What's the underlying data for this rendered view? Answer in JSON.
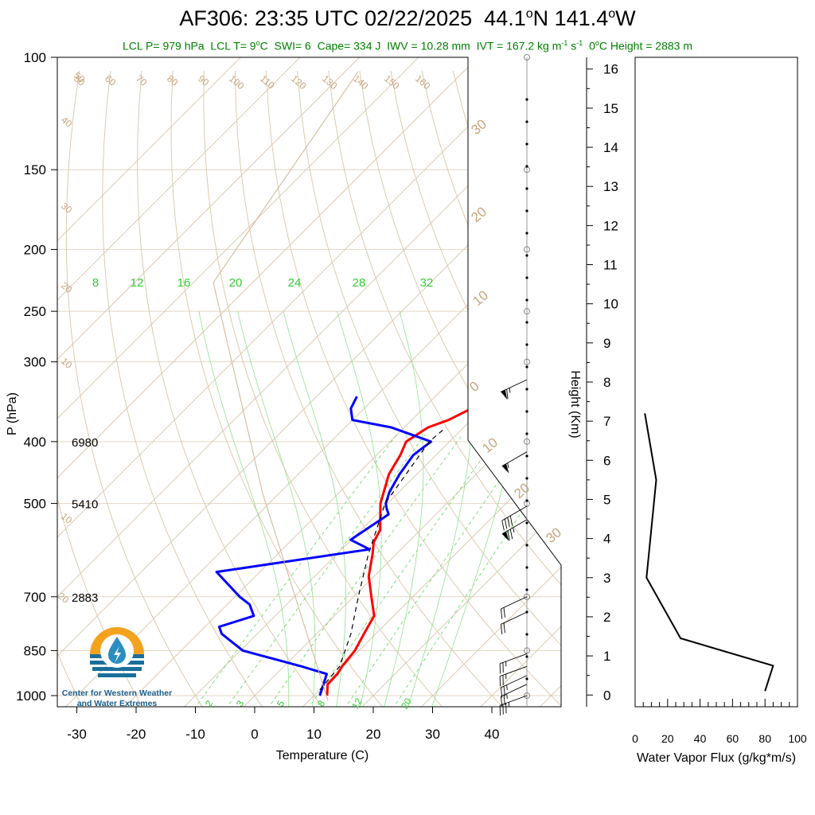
{
  "title": {
    "station": "AF306:",
    "time": "23:35 UTC 02/22/2025",
    "lat": "44.1",
    "lat_dir": "N",
    "lon": "141.4",
    "lon_dir": "W",
    "deg": "o"
  },
  "subtitle": {
    "lcl_p": "LCL P= 979 hPa",
    "lcl_t_pre": "LCL T= 9",
    "lcl_t_post": "C",
    "swi": "SWI= 6",
    "cape": "Cape= 334 J",
    "iwv": "IWV = 10.28 mm",
    "ivt_pre": "IVT = 167.2 kg m",
    "ivt_exp1": "-1",
    "ivt_mid": " s",
    "ivt_exp2": "-1",
    "zero_pre": "0",
    "zero_post": "C Height = 2883 m",
    "deg": "o"
  },
  "logo": {
    "line1": "Center for Western Weather",
    "line2": "and Water Extremes"
  },
  "chart_data": [
    {
      "type": "line",
      "subtype": "skew-T log-P sounding",
      "xlabel": "Temperature (C)",
      "ylabel": "P (hPa)",
      "xlim": [
        -33,
        52
      ],
      "ylim": [
        1000,
        100
      ],
      "y_scale": "log",
      "x_ticks": [
        -30,
        -20,
        -10,
        0,
        10,
        20,
        30,
        40
      ],
      "y_ticks": [
        100,
        150,
        200,
        250,
        300,
        400,
        500,
        700,
        850,
        1000
      ],
      "height_labels": [
        {
          "p": 400,
          "label": "6980"
        },
        {
          "p": 500,
          "label": "5410"
        },
        {
          "p": 700,
          "label": "2883"
        }
      ],
      "series": [
        {
          "role": "temperature",
          "color": "#ff0000",
          "p": [
            1000,
            960,
            925,
            900,
            850,
            800,
            750,
            700,
            650,
            600,
            575,
            550,
            500,
            450,
            420,
            400,
            380,
            370,
            350
          ],
          "t": [
            12.2,
            10.4,
            10.3,
            9.8,
            9.3,
            8.0,
            6.7,
            3.0,
            -0.9,
            -4.0,
            -5.8,
            -6.8,
            -11.2,
            -14.7,
            -16.0,
            -17.3,
            -16.0,
            -13.8,
            -11.2
          ]
        },
        {
          "role": "dewpoint",
          "color": "#0000ff",
          "p": [
            1000,
            925,
            900,
            850,
            800,
            780,
            750,
            720,
            700,
            640,
            590,
            570,
            520,
            510,
            500,
            480,
            450,
            420,
            410,
            400,
            380,
            370,
            355,
            340
          ],
          "t": [
            11.0,
            8.5,
            3.0,
            -9.6,
            -16.0,
            -17.6,
            -13.6,
            -16.2,
            -19.2,
            -27.3,
            -5.3,
            -10.1,
            -8.0,
            -9.2,
            -10.3,
            -11.6,
            -12.9,
            -13.8,
            -13.5,
            -13.1,
            -22.2,
            -30.0,
            -32.2,
            -33.2
          ]
        },
        {
          "role": "parcel",
          "color": "#000000",
          "dash": "dashed",
          "p": [
            979,
            900,
            800,
            700,
            600,
            500,
            400,
            380
          ],
          "t": [
            10.0,
            9.4,
            5.8,
            0.8,
            -4.7,
            -10.4,
            -13.4,
            -13.0
          ]
        }
      ],
      "wind_barbs": [
        {
          "p": 1000,
          "dir": 290,
          "spd": 35
        },
        {
          "p": 960,
          "dir": 295,
          "spd": 25
        },
        {
          "p": 930,
          "dir": 295,
          "spd": 25
        },
        {
          "p": 900,
          "dir": 290,
          "spd": 25
        },
        {
          "p": 860,
          "dir": 290,
          "spd": 25
        },
        {
          "p": 740,
          "dir": 295,
          "spd": 20
        },
        {
          "p": 700,
          "dir": 295,
          "spd": 20
        },
        {
          "p": 530,
          "dir": 300,
          "spd": 75
        },
        {
          "p": 505,
          "dir": 300,
          "spd": 40
        },
        {
          "p": 415,
          "dir": 300,
          "spd": 55
        },
        {
          "p": 320,
          "dir": 295,
          "spd": 65
        }
      ],
      "dry_adiabat_labels": [
        "50",
        "60",
        "70",
        "80",
        "90",
        "100",
        "110",
        "120",
        "130",
        "140",
        "150",
        "160"
      ],
      "mixing_ratio_top_labels": [
        "8",
        "12",
        "16",
        "20",
        "24",
        "28",
        "32"
      ],
      "mixing_ratio_bottom_labels": [
        "2",
        "3",
        "5",
        "8",
        "12",
        "20"
      ],
      "right_edge_labels": [
        "30",
        "20",
        "10",
        "0",
        "10",
        "20",
        "30"
      ],
      "left_edge_labels": [
        "50",
        "40",
        "30",
        "20",
        "10",
        "10",
        "20"
      ]
    },
    {
      "type": "line",
      "xlabel": "Water Vapor Flux (g/kg*m/s)",
      "ylabel": "Height (Km)",
      "xlim": [
        0,
        100
      ],
      "ylim": [
        -0.3,
        16.3
      ],
      "x_ticks": [
        0,
        20,
        40,
        60,
        80,
        100
      ],
      "y_ticks": [
        0,
        1,
        2,
        3,
        4,
        5,
        6,
        7,
        8,
        9,
        10,
        11,
        12,
        13,
        14,
        15,
        16
      ],
      "series": [
        {
          "color": "#000000",
          "x": [
            80,
            85,
            28,
            7,
            13,
            6
          ],
          "y": [
            0.1,
            0.75,
            1.45,
            3.0,
            5.5,
            7.2
          ]
        }
      ]
    }
  ]
}
